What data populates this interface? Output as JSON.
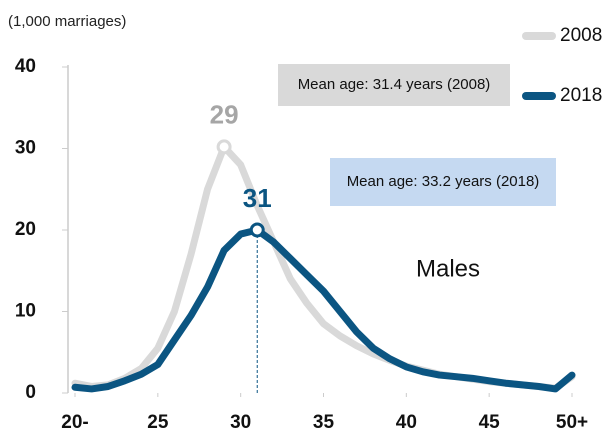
{
  "chart_data": {
    "type": "line",
    "unit_label": "(1,000 marriages)",
    "x": [
      20,
      21,
      22,
      23,
      24,
      25,
      26,
      27,
      28,
      29,
      30,
      31,
      32,
      33,
      34,
      35,
      36,
      37,
      38,
      39,
      40,
      41,
      42,
      43,
      44,
      45,
      46,
      47,
      48,
      49,
      50
    ],
    "series": [
      {
        "name": "2008",
        "color": "#d9d9d9",
        "peak_x": 29,
        "values": [
          1.2,
          0.8,
          1.0,
          1.8,
          3.0,
          5.5,
          10,
          17,
          25,
          30.2,
          28,
          23,
          18.5,
          14,
          11,
          8.5,
          7,
          5.8,
          4.8,
          4,
          3.3,
          2.8,
          2.3,
          2,
          1.7,
          1.4,
          1.2,
          1,
          0.8,
          0.6,
          2.0
        ]
      },
      {
        "name": "2018",
        "color": "#0b5582",
        "peak_x": 31,
        "values": [
          0.7,
          0.5,
          0.8,
          1.5,
          2.3,
          3.5,
          6.5,
          9.5,
          13,
          17.5,
          19.5,
          20,
          18.5,
          16.5,
          14.5,
          12.5,
          10,
          7.5,
          5.5,
          4.2,
          3.2,
          2.6,
          2.2,
          2,
          1.8,
          1.5,
          1.2,
          1,
          0.8,
          0.5,
          2.2
        ]
      }
    ],
    "annotations": [
      "Mean age: 31.4 years (2008)",
      "Mean age: 33.2 years (2018)",
      "Males"
    ],
    "xlim": [
      20,
      50
    ],
    "xticks": [
      {
        "value": 20,
        "label": "20-"
      },
      25,
      30,
      35,
      40,
      45,
      {
        "value": 50,
        "label": "50+"
      }
    ],
    "ylim": [
      0,
      40
    ],
    "yticks": [
      0,
      10,
      20,
      30,
      40
    ]
  }
}
